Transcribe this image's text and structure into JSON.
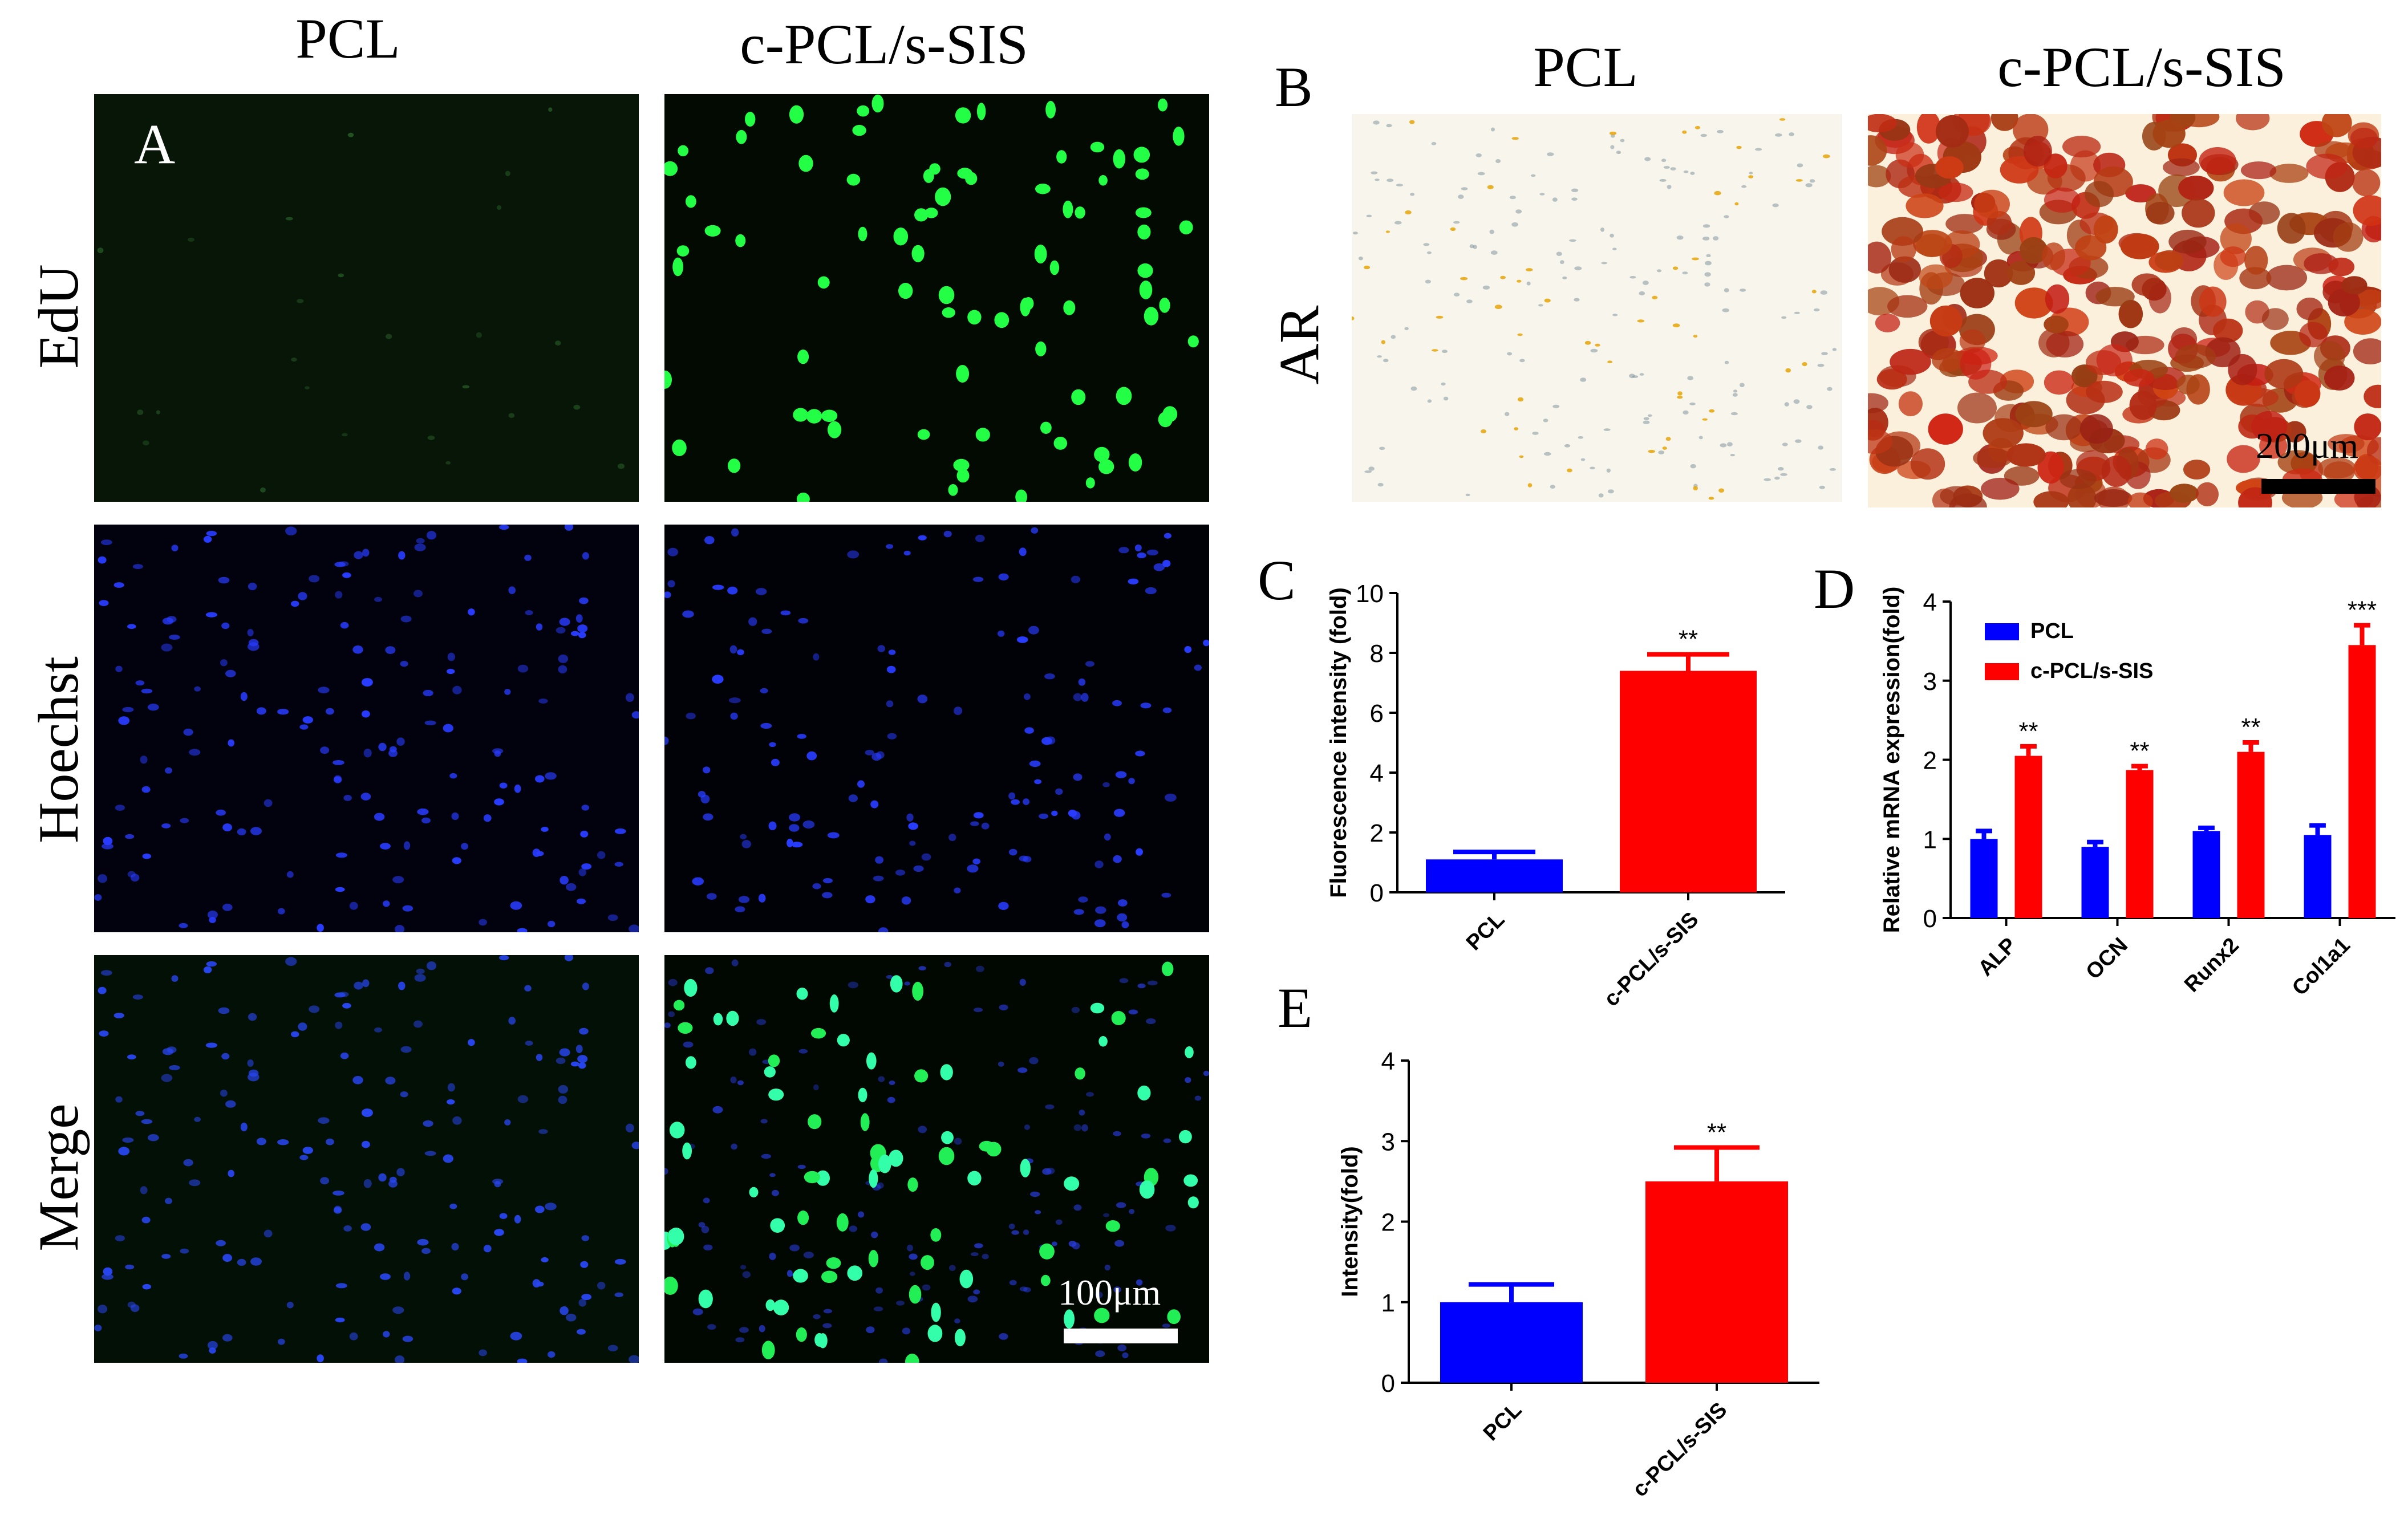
{
  "panelA": {
    "label": "A",
    "columns": [
      "PCL",
      "c-PCL/s-SIS"
    ],
    "rows": [
      "EdU",
      "Hoechst",
      "Merge"
    ],
    "scale_bar": "100μm"
  },
  "panelB": {
    "label": "B",
    "columns": [
      "PCL",
      "c-PCL/s-SIS"
    ],
    "row": "AR",
    "scale_bar": "200μm"
  },
  "panelC": {
    "label": "C"
  },
  "panelD": {
    "label": "D"
  },
  "panelE": {
    "label": "E"
  },
  "colors": {
    "PCL": "#0000ff",
    "c-PCL/s-SIS": "#ff0000",
    "edu": "#22ff44",
    "hoechst": "#2030ff",
    "alizarin": "#b0301a"
  },
  "chart_data": [
    {
      "id": "C",
      "type": "bar",
      "categories": [
        "PCL",
        "c-PCL/s-SIS"
      ],
      "values": [
        1.1,
        7.4
      ],
      "errors": [
        0.25,
        0.55
      ],
      "significance": [
        "",
        "**"
      ],
      "ylabel": "Fluorescence intensity (fold)",
      "ylim": [
        0,
        10
      ],
      "yticks": [
        0,
        2,
        4,
        6,
        8,
        10
      ]
    },
    {
      "id": "D",
      "type": "bar",
      "categories": [
        "ALP",
        "OCN",
        "Runx2",
        "Col1a1"
      ],
      "series": [
        {
          "name": "PCL",
          "values": [
            1.0,
            0.9,
            1.1,
            1.05
          ],
          "errors": [
            0.1,
            0.06,
            0.04,
            0.12
          ]
        },
        {
          "name": "c-PCL/s-SIS",
          "values": [
            2.05,
            1.87,
            2.1,
            3.45
          ],
          "errors": [
            0.12,
            0.05,
            0.12,
            0.25
          ]
        }
      ],
      "significance": [
        "**",
        "**",
        "**",
        "***"
      ],
      "ylabel": "Relative mRNA expression(fold)",
      "ylim": [
        0,
        4
      ],
      "yticks": [
        0,
        1,
        2,
        3,
        4
      ],
      "legend": "top-left"
    },
    {
      "id": "E",
      "type": "bar",
      "categories": [
        "PCL",
        "c-PCL/s-SIS"
      ],
      "values": [
        1.0,
        2.5
      ],
      "errors": [
        0.22,
        0.42
      ],
      "significance": [
        "",
        "**"
      ],
      "ylabel": "Intensity(fold)",
      "ylim": [
        0,
        4
      ],
      "yticks": [
        0,
        1,
        2,
        3,
        4
      ]
    }
  ]
}
